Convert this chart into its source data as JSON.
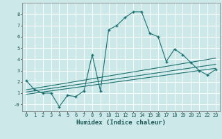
{
  "title": "",
  "xlabel": "Humidex (Indice chaleur)",
  "xlim": [
    -0.5,
    23.5
  ],
  "ylim": [
    -0.6,
    9.0
  ],
  "xticks": [
    0,
    1,
    2,
    3,
    4,
    5,
    6,
    7,
    8,
    9,
    10,
    11,
    12,
    13,
    14,
    15,
    16,
    17,
    18,
    19,
    20,
    21,
    22,
    23
  ],
  "yticks": [
    0,
    1,
    2,
    3,
    4,
    5,
    6,
    7,
    8
  ],
  "ytick_labels": [
    "-0",
    "1",
    "2",
    "3",
    "4",
    "5",
    "6",
    "7",
    "8"
  ],
  "bg_color": "#cce8e8",
  "grid_color": "#ffffff",
  "line_color": "#1a7070",
  "line1_x": [
    0,
    1,
    2,
    3,
    4,
    5,
    6,
    7,
    8,
    9,
    10,
    11,
    12,
    13,
    14,
    15,
    16,
    17,
    18,
    19,
    20,
    21,
    22,
    23
  ],
  "line1_y": [
    2.1,
    1.3,
    1.0,
    1.0,
    -0.2,
    0.8,
    0.7,
    1.2,
    4.4,
    1.2,
    6.6,
    7.0,
    7.7,
    8.2,
    8.2,
    6.3,
    6.0,
    3.8,
    4.9,
    4.4,
    3.7,
    3.0,
    2.6,
    3.1
  ],
  "line2_x": [
    0,
    23
  ],
  "line2_y": [
    0.9,
    3.2
  ],
  "line3_x": [
    0,
    23
  ],
  "line3_y": [
    1.1,
    3.55
  ],
  "line4_x": [
    0,
    23
  ],
  "line4_y": [
    1.3,
    4.1
  ],
  "figsize": [
    3.2,
    2.0
  ],
  "dpi": 100
}
